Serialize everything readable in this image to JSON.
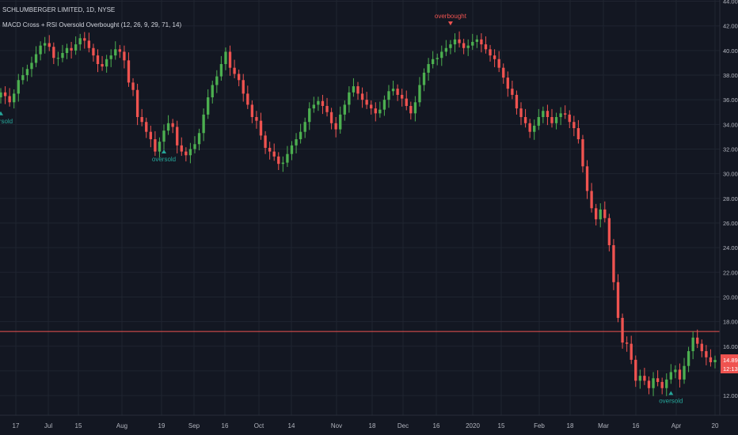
{
  "header": {
    "symbol_line": "SCHLUMBERGER LIMITED, 1D, NYSE",
    "indicator_line": "MACD Cross + RSI Oversold Overbought (12, 26, 9, 29, 71, 14)"
  },
  "colors": {
    "background": "#131722",
    "up": "#26a69a",
    "up_candle": "#4caf50",
    "down_candle": "#ef5350",
    "grid": "#1f2430",
    "axis_text": "#b2b5be",
    "price_line": "#ef5350",
    "oversold_label": "#26a69a",
    "overbought_label": "#ef5350"
  },
  "chart_data": {
    "type": "candlestick",
    "title": "SCHLUMBERGER LIMITED, 1D, NYSE",
    "x_tick_labels": [
      "17",
      "Jul",
      "15",
      "Aug",
      "19",
      "Sep",
      "16",
      "Oct",
      "14",
      "Nov",
      "18",
      "Dec",
      "16",
      "2020",
      "15",
      "Feb",
      "18",
      "Mar",
      "16",
      "Apr",
      "20"
    ],
    "y_tick_labels": [
      "12.00",
      "14.00",
      "16.00",
      "18.00",
      "20.00",
      "22.00",
      "24.00",
      "26.00",
      "28.00",
      "30.00",
      "32.00",
      "34.00",
      "36.00",
      "38.00",
      "40.00",
      "42.00",
      "44.00"
    ],
    "ylim": [
      10.4,
      44.1
    ],
    "last_price": "14.89",
    "countdown": "12:13",
    "horizontal_line_price": 17.2,
    "closes": [
      36.6,
      36.3,
      35.8,
      36.5,
      37.6,
      38.0,
      38.5,
      39.0,
      39.7,
      40.4,
      40.6,
      40.3,
      39.4,
      39.4,
      39.8,
      40.2,
      40.0,
      40.5,
      41.0,
      40.8,
      40.2,
      39.6,
      38.9,
      38.7,
      39.3,
      39.6,
      40.1,
      39.9,
      39.2,
      37.4,
      36.8,
      34.6,
      34.2,
      33.4,
      32.8,
      31.8,
      32.6,
      33.5,
      34.1,
      33.8,
      32.3,
      31.8,
      31.5,
      32.0,
      32.4,
      33.3,
      34.8,
      36.2,
      37.2,
      37.9,
      38.9,
      39.9,
      38.6,
      38.1,
      37.6,
      36.5,
      35.6,
      34.6,
      34.3,
      33.1,
      32.1,
      31.8,
      31.4,
      30.8,
      30.9,
      31.6,
      32.3,
      32.8,
      33.4,
      34.2,
      35.3,
      35.6,
      35.9,
      35.5,
      35.0,
      34.1,
      33.6,
      34.8,
      35.6,
      36.6,
      37.1,
      36.5,
      36.0,
      35.6,
      35.3,
      34.9,
      35.2,
      36.0,
      36.7,
      36.9,
      36.4,
      36.1,
      35.5,
      34.9,
      35.8,
      37.2,
      38.2,
      38.9,
      39.3,
      39.4,
      39.9,
      40.2,
      40.5,
      40.9,
      40.6,
      40.2,
      40.4,
      40.7,
      40.9,
      40.5,
      40.1,
      39.6,
      39.3,
      38.6,
      37.8,
      36.9,
      36.4,
      35.3,
      34.6,
      34.1,
      33.4,
      33.9,
      34.6,
      35.1,
      34.6,
      34.1,
      34.6,
      34.9,
      34.8,
      34.2,
      33.7,
      32.8,
      30.6,
      28.6,
      27.2,
      26.3,
      27.1,
      26.4,
      24.2,
      21.2,
      18.3,
      16.3,
      16.2,
      14.9,
      13.2,
      13.6,
      13.2,
      12.6,
      13.4,
      13.1,
      12.6,
      13.3,
      13.9,
      14.1,
      13.3,
      14.4,
      15.6,
      16.7,
      16.2,
      15.6,
      15.1,
      14.7,
      14.89
    ],
    "annotations": [
      {
        "label": "oversold",
        "index": 0
      },
      {
        "label": "oversold",
        "index": 37
      },
      {
        "label": "overbought",
        "index": 102
      },
      {
        "label": "oversold",
        "index": 152
      }
    ]
  }
}
